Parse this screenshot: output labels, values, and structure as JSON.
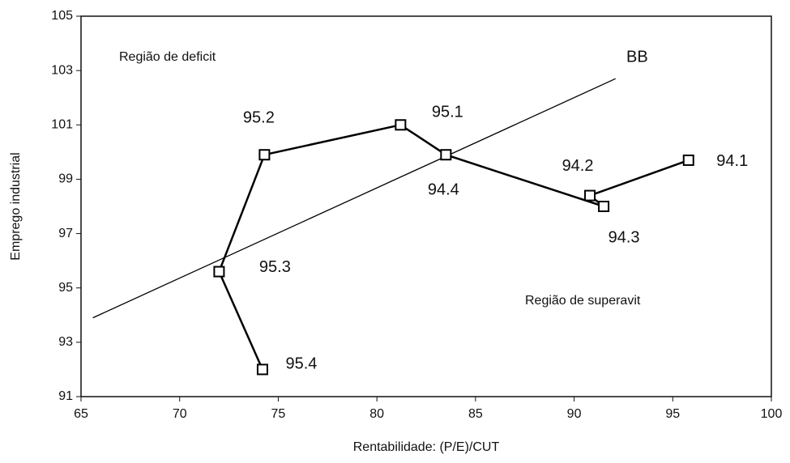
{
  "chart_data": {
    "type": "line",
    "x_label": "Rentabilidade: (P/E)/CUT",
    "y_label": "Emprego industrial",
    "annotations": [
      "Região de deficit",
      "Região de superavit"
    ],
    "xlim": [
      65,
      100
    ],
    "xticks": [
      65,
      70,
      75,
      80,
      85,
      90,
      95,
      100
    ],
    "ylim": [
      91,
      105
    ],
    "yticks": [
      91,
      93,
      95,
      97,
      99,
      101,
      103,
      105
    ],
    "grid": false,
    "series": [
      {
        "name": "BB",
        "color": "#000000",
        "x": [
          65.6,
          92.1
        ],
        "values": [
          93.9,
          102.7
        ]
      },
      {
        "color": "#000000",
        "marker": "square",
        "labels": [
          "94.1",
          "94.2",
          "94.3",
          "94.4",
          "95.1",
          "95.2",
          "95.3",
          "95.4"
        ],
        "x": [
          95.8,
          90.8,
          91.5,
          83.5,
          81.2,
          74.3,
          72.0,
          74.2
        ],
        "values": [
          99.7,
          98.4,
          98.0,
          99.9,
          101.0,
          99.9,
          95.6,
          92.0
        ]
      }
    ]
  }
}
